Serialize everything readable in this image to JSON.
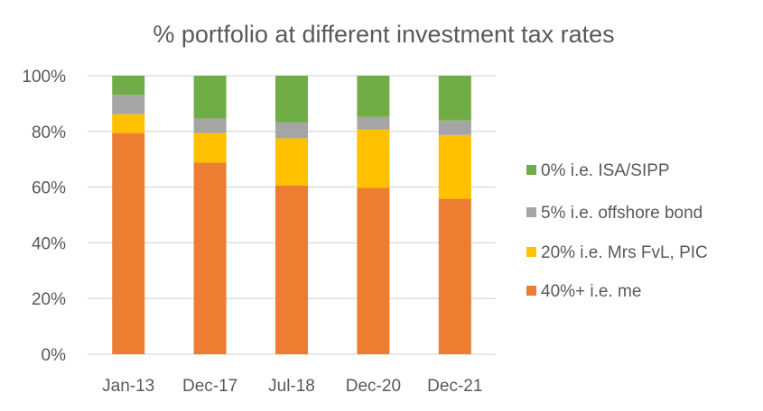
{
  "chart_data": {
    "type": "bar",
    "stacked": true,
    "percent_stacked": true,
    "title": "% portfolio at different investment tax rates",
    "xlabel": "",
    "ylabel": "",
    "categories": [
      "Jan-13",
      "Dec-17",
      "Jul-18",
      "Dec-20",
      "Dec-21"
    ],
    "ylim": [
      0,
      100
    ],
    "yticks": [
      0,
      20,
      40,
      60,
      80,
      100
    ],
    "ytick_labels": [
      "0%",
      "20%",
      "40%",
      "60%",
      "80%",
      "100%"
    ],
    "grid": true,
    "legend_position": "right",
    "series": [
      {
        "name": "40%+ i.e. me",
        "color": "#ED7D31",
        "values": [
          79.4,
          68.8,
          60.6,
          59.7,
          55.8
        ]
      },
      {
        "name": "20% i.e. Mrs FvL, PIC",
        "color": "#FFC000",
        "values": [
          6.8,
          10.6,
          16.9,
          21.0,
          22.9
        ]
      },
      {
        "name": "5% i.e. offshore bond",
        "color": "#A5A5A5",
        "values": [
          6.9,
          5.2,
          5.7,
          4.5,
          5.2
        ]
      },
      {
        "name": "0% i.e. ISA/SIPP",
        "color": "#70AD47",
        "values": [
          6.9,
          15.4,
          16.8,
          14.8,
          16.1
        ]
      }
    ],
    "legend_order": [
      "0% i.e. ISA/SIPP",
      "5% i.e. offshore bond",
      "20% i.e. Mrs FvL, PIC",
      "40%+ i.e. me"
    ]
  }
}
